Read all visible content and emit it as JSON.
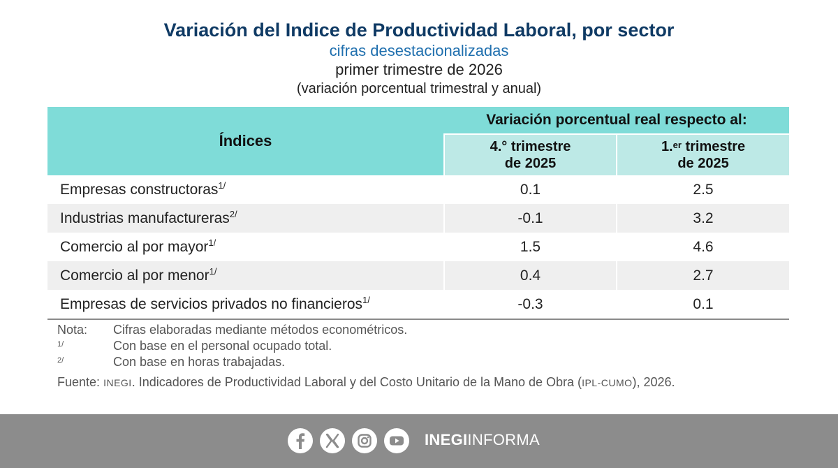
{
  "header": {
    "title": "Variación del Indice de Productividad Laboral, por sector",
    "subtitle": "cifras desestacionalizadas",
    "period": "primer trimestre de 2026",
    "units": "(variación porcentual trimestral y anual)"
  },
  "table": {
    "col_indices": "Índices",
    "col_span": "Variación porcentual real respecto al:",
    "col_q4_line1": "4.° trimestre",
    "col_q4_line2": "de 2025",
    "col_q1_prefix": "1.",
    "col_q1_sup": "er",
    "col_q1_line1_rest": " trimestre",
    "col_q1_line2": "de 2025",
    "rows": [
      {
        "label": "Empresas constructoras",
        "note": "1/",
        "q4": "0.1",
        "q1": "2.5"
      },
      {
        "label": "Industrias manufactureras",
        "note": "2/",
        "q4": "-0.1",
        "q1": "3.2"
      },
      {
        "label": "Comercio al por mayor",
        "note": "1/",
        "q4": "1.5",
        "q1": "4.6"
      },
      {
        "label": "Comercio al por menor",
        "note": "1/",
        "q4": "0.4",
        "q1": "2.7"
      },
      {
        "label": "Empresas de servicios privados no financieros",
        "note": "1/",
        "q4": "-0.3",
        "q1": "0.1"
      }
    ]
  },
  "notes": {
    "nota_label": "Nota:",
    "nota_text": "Cifras elaboradas mediante métodos econométricos.",
    "n1_key": "1/",
    "n1_text": "Con base en el personal ocupado total.",
    "n2_key": "2/",
    "n2_text": "Con base en horas trabajadas.",
    "source_label": "Fuente:",
    "source_org": "INEGI",
    "source_text": ". Indicadores de Productividad Laboral y del Costo Unitario de la Mano de Obra (",
    "source_abbr": "IPL-CUMO",
    "source_end": "), 2026."
  },
  "footer": {
    "brand_bold": "INEGI",
    "brand_light": "INFORMA",
    "icons": [
      "facebook-icon",
      "x-icon",
      "instagram-icon",
      "youtube-icon"
    ]
  },
  "colors": {
    "title": "#0f3a64",
    "subtitle": "#1f6fae",
    "header_dark": "#7fdcd8",
    "header_light": "#bde9e6",
    "row_alt": "#efefef",
    "footer_bg": "#8c8c8c"
  }
}
